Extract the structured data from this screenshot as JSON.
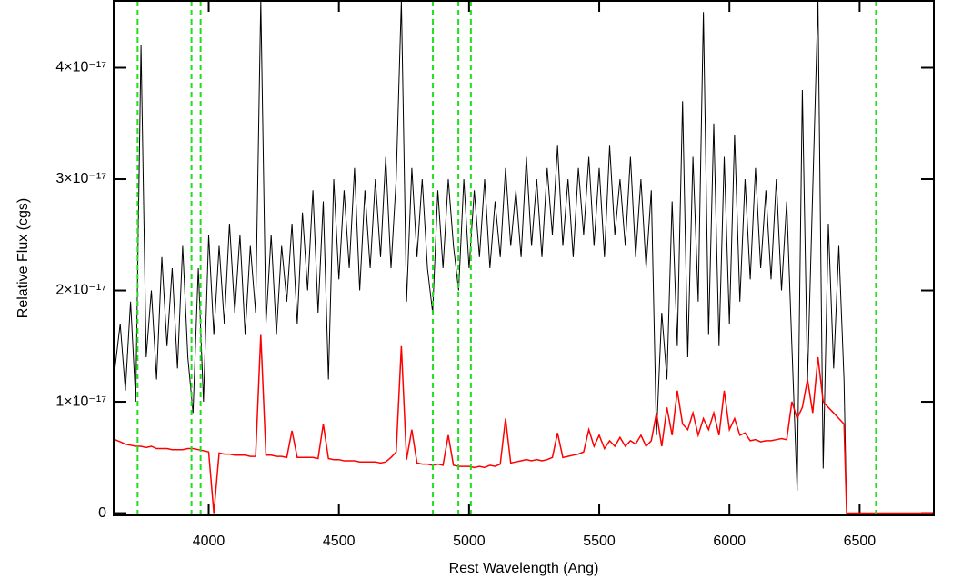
{
  "chart_data": {
    "type": "line",
    "xlabel": "Rest Wavelength (Ang)",
    "ylabel": "Relative Flux (cgs)",
    "xlim": [
      3635,
      6785
    ],
    "ylim": [
      -2e-19,
      4.6e-17
    ],
    "xticks": [
      4000,
      4500,
      5000,
      5500,
      6000,
      6500
    ],
    "yticks": [
      0,
      {
        "value": 1e-17,
        "label": "1×10⁻¹⁷"
      },
      {
        "value": 2e-17,
        "label": "2×10⁻¹⁷"
      },
      {
        "value": 3e-17,
        "label": "3×10⁻¹⁷"
      },
      {
        "value": 4e-17,
        "label": "4×10⁻¹⁷"
      }
    ],
    "vlines": [
      3727,
      3934,
      3969,
      4861,
      4959,
      5007,
      6563
    ],
    "vline_color": "#22dd22",
    "x": [
      3640,
      3660,
      3680,
      3700,
      3720,
      3740,
      3760,
      3780,
      3800,
      3820,
      3840,
      3860,
      3880,
      3900,
      3920,
      3940,
      3960,
      3980,
      4000,
      4020,
      4040,
      4060,
      4080,
      4100,
      4120,
      4140,
      4160,
      4180,
      4200,
      4220,
      4240,
      4260,
      4280,
      4300,
      4320,
      4340,
      4360,
      4380,
      4400,
      4420,
      4440,
      4460,
      4480,
      4500,
      4520,
      4540,
      4560,
      4580,
      4600,
      4620,
      4640,
      4660,
      4680,
      4700,
      4720,
      4740,
      4760,
      4780,
      4800,
      4820,
      4840,
      4860,
      4880,
      4900,
      4920,
      4940,
      4960,
      4980,
      5000,
      5020,
      5040,
      5060,
      5080,
      5100,
      5120,
      5140,
      5160,
      5180,
      5200,
      5220,
      5240,
      5260,
      5280,
      5300,
      5320,
      5340,
      5360,
      5380,
      5400,
      5420,
      5440,
      5460,
      5480,
      5500,
      5520,
      5540,
      5560,
      5580,
      5600,
      5620,
      5640,
      5660,
      5680,
      5700,
      5720,
      5740,
      5760,
      5780,
      5800,
      5820,
      5840,
      5860,
      5880,
      5900,
      5920,
      5940,
      5960,
      5980,
      6000,
      6020,
      6040,
      6060,
      6080,
      6100,
      6120,
      6140,
      6160,
      6180,
      6200,
      6220,
      6240,
      6260,
      6280,
      6300,
      6320,
      6340,
      6360,
      6380,
      6400,
      6420,
      6440,
      6450,
      6500,
      6600,
      6700,
      6780
    ],
    "series": [
      {
        "color": "#000000",
        "values": [
          1.3e-17,
          1.7e-17,
          1.1e-17,
          1.9e-17,
          1e-17,
          4.2e-17,
          1.4e-17,
          2e-17,
          1.2e-17,
          2.3e-17,
          1.5e-17,
          2.2e-17,
          1.3e-17,
          2.4e-17,
          1.4e-17,
          9e-18,
          2.2e-17,
          1e-17,
          2.5e-17,
          1.6e-17,
          2.4e-17,
          1.7e-17,
          2.6e-17,
          1.8e-17,
          2.5e-17,
          1.6e-17,
          2.4e-17,
          1.8e-17,
          4.6e-17,
          1.7e-17,
          2.5e-17,
          1.6e-17,
          2.4e-17,
          1.9e-17,
          2.6e-17,
          1.7e-17,
          2.7e-17,
          2e-17,
          2.9e-17,
          1.8e-17,
          2.8e-17,
          1.2e-17,
          3e-17,
          2.1e-17,
          2.9e-17,
          2.2e-17,
          3.1e-17,
          2e-17,
          2.9e-17,
          2.2e-17,
          3e-17,
          2.3e-17,
          3.2e-17,
          2.2e-17,
          3e-17,
          4.6e-17,
          1.9e-17,
          3.1e-17,
          2.3e-17,
          3e-17,
          2.2e-17,
          1.8e-17,
          2.9e-17,
          2.2e-17,
          3e-17,
          2.4e-17,
          2e-17,
          3e-17,
          2.2e-17,
          2.9e-17,
          2.3e-17,
          3e-17,
          2.2e-17,
          2.8e-17,
          2.3e-17,
          3.1e-17,
          2.4e-17,
          2.9e-17,
          2.3e-17,
          3.2e-17,
          2.4e-17,
          3e-17,
          2.3e-17,
          3.1e-17,
          2.5e-17,
          3.3e-17,
          2.4e-17,
          3e-17,
          2.3e-17,
          3.1e-17,
          2.5e-17,
          3.2e-17,
          2.4e-17,
          3.1e-17,
          2.3e-17,
          3.3e-17,
          2.5e-17,
          3e-17,
          2.4e-17,
          3.2e-17,
          2.3e-17,
          3e-17,
          2.2e-17,
          2.9e-17,
          7e-18,
          1.8e-17,
          1.2e-17,
          2.8e-17,
          1.5e-17,
          3.7e-17,
          1.4e-17,
          3.2e-17,
          1.9e-17,
          4.5e-17,
          1.6e-17,
          3.5e-17,
          1.5e-17,
          3.2e-17,
          1.7e-17,
          3.4e-17,
          1.9e-17,
          3e-17,
          2.1e-17,
          3.1e-17,
          2.2e-17,
          2.9e-17,
          2.1e-17,
          3e-17,
          2e-17,
          2.8e-17,
          1.5e-17,
          2e-18,
          3.8e-17,
          1.2e-17,
          2.9e-17,
          4.6e-17,
          4e-18,
          2.6e-17,
          1.3e-17,
          2.4e-17,
          1.2e-17,
          0,
          null,
          null,
          null,
          null
        ]
      },
      {
        "color": "#ff0000",
        "values": [
          6.6e-18,
          6.4e-18,
          6.2e-18,
          6.1e-18,
          6e-18,
          6e-18,
          5.9e-18,
          6e-18,
          5.8e-18,
          5.8e-18,
          5.8e-18,
          5.7e-18,
          5.7e-18,
          5.7e-18,
          5.8e-18,
          5.8e-18,
          5.7e-18,
          5.6e-18,
          5.5e-18,
          0,
          5.4e-18,
          5.3e-18,
          5.3e-18,
          5.2e-18,
          5.2e-18,
          5.2e-18,
          5.1e-18,
          5.1e-18,
          1.6e-17,
          5.2e-18,
          5.2e-18,
          5.1e-18,
          5.1e-18,
          5e-18,
          7.4e-18,
          5e-18,
          5e-18,
          5e-18,
          5e-18,
          4.9e-18,
          8e-18,
          4.9e-18,
          4.8e-18,
          4.8e-18,
          4.7e-18,
          4.7e-18,
          4.7e-18,
          4.6e-18,
          4.6e-18,
          4.6e-18,
          4.6e-18,
          4.5e-18,
          4.6e-18,
          5e-18,
          5.5e-18,
          1.5e-17,
          4.8e-18,
          7.5e-18,
          4.5e-18,
          4.4e-18,
          4.4e-18,
          4.3e-18,
          4.4e-18,
          4.3e-18,
          7e-18,
          4.3e-18,
          4.2e-18,
          4.2e-18,
          4.2e-18,
          4.1e-18,
          4.2e-18,
          4.1e-18,
          4.3e-18,
          4.2e-18,
          4.4e-18,
          8.5e-18,
          4.5e-18,
          4.6e-18,
          4.7e-18,
          4.8e-18,
          4.7e-18,
          4.8e-18,
          4.7e-18,
          4.8e-18,
          5e-18,
          7.2e-18,
          5e-18,
          5.1e-18,
          5.2e-18,
          5.3e-18,
          5.5e-18,
          7.5e-18,
          6e-18,
          7e-18,
          5.8e-18,
          6.5e-18,
          6e-18,
          6.8e-18,
          6e-18,
          6.5e-18,
          6.2e-18,
          7e-18,
          6e-18,
          6.5e-18,
          9e-18,
          6e-18,
          9.5e-18,
          7e-18,
          1.1e-17,
          8e-18,
          7.5e-18,
          9e-18,
          7e-18,
          8.5e-18,
          7.5e-18,
          9e-18,
          7e-18,
          1.1e-17,
          7.5e-18,
          8.5e-18,
          7e-18,
          7.2e-18,
          6.5e-18,
          6.6e-18,
          6.4e-18,
          6.5e-18,
          6.5e-18,
          6.6e-18,
          6.7e-18,
          6.6e-18,
          1e-17,
          8.5e-18,
          9.5e-18,
          1.2e-17,
          9e-18,
          1.4e-17,
          1e-17,
          9.5e-18,
          9e-18,
          8.5e-18,
          8e-18,
          0,
          0,
          0,
          0,
          0
        ]
      }
    ]
  }
}
